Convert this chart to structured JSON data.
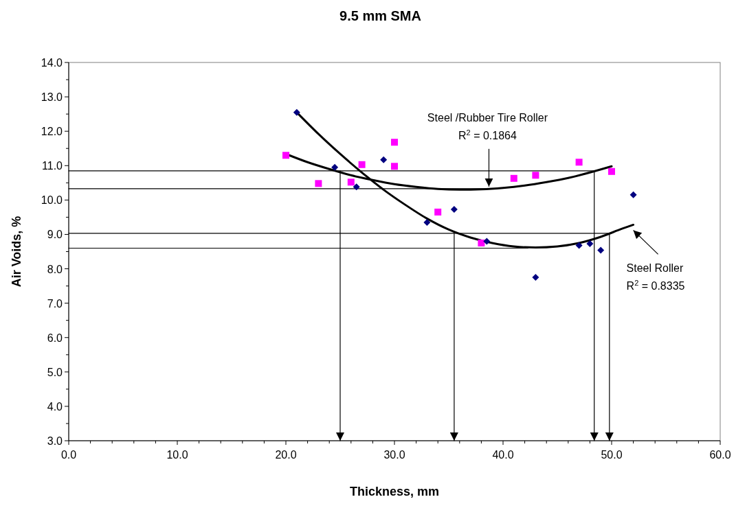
{
  "chart_data": {
    "type": "scatter",
    "title": "9.5 mm SMA",
    "xlabel": "Thickness, mm",
    "ylabel": "Air Voids, %",
    "xlim": [
      0,
      60
    ],
    "ylim": [
      3,
      14
    ],
    "xticks": [
      {
        "value": 0,
        "label": "0.0"
      },
      {
        "value": 2,
        "label": null
      },
      {
        "value": 4,
        "label": null
      },
      {
        "value": 6,
        "label": null
      },
      {
        "value": 8,
        "label": null
      },
      {
        "value": 10,
        "label": "10.0"
      },
      {
        "value": 12,
        "label": null
      },
      {
        "value": 14,
        "label": null
      },
      {
        "value": 16,
        "label": null
      },
      {
        "value": 18,
        "label": null
      },
      {
        "value": 20,
        "label": "20.0"
      },
      {
        "value": 22,
        "label": null
      },
      {
        "value": 24,
        "label": null
      },
      {
        "value": 26,
        "label": null
      },
      {
        "value": 28,
        "label": null
      },
      {
        "value": 30,
        "label": "30.0"
      },
      {
        "value": 32,
        "label": null
      },
      {
        "value": 34,
        "label": null
      },
      {
        "value": 36,
        "label": null
      },
      {
        "value": 38,
        "label": null
      },
      {
        "value": 40,
        "label": "40.0"
      },
      {
        "value": 42,
        "label": null
      },
      {
        "value": 44,
        "label": null
      },
      {
        "value": 46,
        "label": null
      },
      {
        "value": 48,
        "label": null
      },
      {
        "value": 50,
        "label": "50.0"
      },
      {
        "value": 52,
        "label": null
      },
      {
        "value": 54,
        "label": null
      },
      {
        "value": 56,
        "label": null
      },
      {
        "value": 58,
        "label": null
      },
      {
        "value": 60,
        "label": "60.0"
      }
    ],
    "yticks": [
      {
        "value": 3,
        "label": "3.0"
      },
      {
        "value": 3.5,
        "label": null
      },
      {
        "value": 4,
        "label": "4.0"
      },
      {
        "value": 4.5,
        "label": null
      },
      {
        "value": 5,
        "label": "5.0"
      },
      {
        "value": 5.5,
        "label": null
      },
      {
        "value": 6,
        "label": "6.0"
      },
      {
        "value": 6.5,
        "label": null
      },
      {
        "value": 7,
        "label": "7.0"
      },
      {
        "value": 7.5,
        "label": null
      },
      {
        "value": 8,
        "label": "8.0"
      },
      {
        "value": 8.5,
        "label": null
      },
      {
        "value": 9,
        "label": "9.0"
      },
      {
        "value": 9.5,
        "label": null
      },
      {
        "value": 10,
        "label": "10.0"
      },
      {
        "value": 10.5,
        "label": null
      },
      {
        "value": 11,
        "label": "11.0"
      },
      {
        "value": 11.5,
        "label": null
      },
      {
        "value": 12,
        "label": "12.0"
      },
      {
        "value": 12.5,
        "label": null
      },
      {
        "value": 13,
        "label": "13.0"
      },
      {
        "value": 13.5,
        "label": null
      },
      {
        "value": 14,
        "label": "14.0"
      }
    ],
    "grid": false,
    "annotations": [
      {
        "text": "Steel /Rubber Tire Roller\nR$^{2}$ = 0.1864",
        "x": 38.7,
        "y": 10.35
      },
      {
        "text": "Steel Roller\nR$^{2}$ = 0.8335",
        "x": 52,
        "y": 9.28
      }
    ],
    "series": [
      {
        "marker": "diamond",
        "color": "#000080",
        "x": [
          21,
          24.5,
          26.5,
          29,
          33,
          35.5,
          38.5,
          43,
          47,
          48,
          49,
          52
        ],
        "values": [
          12.55,
          10.95,
          10.38,
          11.17,
          9.35,
          9.73,
          8.8,
          7.75,
          8.68,
          8.73,
          8.54,
          10.15
        ]
      },
      {
        "marker": "square",
        "color": "#ff00ff",
        "x": [
          20,
          23,
          26,
          27,
          30,
          30,
          34,
          38,
          41,
          43,
          47,
          50
        ],
        "values": [
          11.3,
          10.48,
          10.52,
          11.03,
          11.68,
          10.98,
          9.65,
          8.75,
          10.63,
          10.72,
          11.1,
          10.83
        ]
      },
      {
        "type": "line",
        "color": "#000000",
        "x": [
          21,
          23,
          25,
          27,
          29,
          31,
          33,
          35,
          37,
          39,
          41,
          43,
          45,
          47,
          49,
          51,
          52
        ],
        "values": [
          12.55,
          11.92,
          11.34,
          10.8,
          10.3,
          9.86,
          9.46,
          9.14,
          8.91,
          8.75,
          8.65,
          8.62,
          8.65,
          8.75,
          8.93,
          9.17,
          9.28
        ]
      },
      {
        "type": "line",
        "color": "#000000",
        "x": [
          20,
          22,
          24,
          26,
          28,
          30,
          32,
          34,
          36,
          38,
          40,
          42,
          44,
          46,
          48,
          50
        ],
        "values": [
          11.34,
          11.1,
          10.9,
          10.72,
          10.58,
          10.46,
          10.38,
          10.32,
          10.3,
          10.31,
          10.35,
          10.42,
          10.52,
          10.64,
          10.8,
          10.98
        ]
      },
      {
        "type": "line",
        "color": "#000000",
        "x": [
          0,
          48.4,
          48.4
        ],
        "values": [
          10.85,
          10.85,
          3
        ]
      },
      {
        "type": "line",
        "color": "#000000",
        "x": [
          25,
          25
        ],
        "values": [
          10.85,
          3
        ]
      },
      {
        "type": "line",
        "color": "#000000",
        "x": [
          0,
          39
        ],
        "values": [
          10.33,
          10.33
        ]
      },
      {
        "type": "line",
        "color": "#000000",
        "x": [
          0,
          49.8,
          49.8
        ],
        "values": [
          9.03,
          9.03,
          3
        ]
      },
      {
        "type": "line",
        "color": "#000000",
        "x": [
          35.5,
          35.5
        ],
        "values": [
          9.03,
          3
        ]
      },
      {
        "type": "line",
        "color": "#000000",
        "x": [
          0,
          42.3
        ],
        "values": [
          8.6,
          8.6
        ]
      }
    ]
  }
}
